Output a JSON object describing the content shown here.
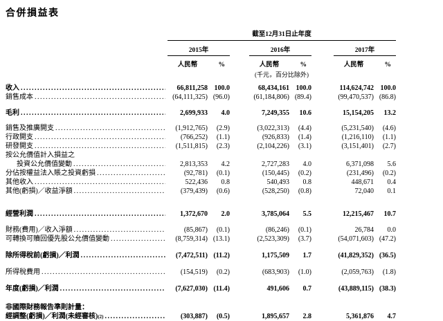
{
  "title": "合併損益表",
  "table": {
    "period_header": "截至12月31日止年度",
    "years": [
      "2015年",
      "2016年",
      "2017年"
    ],
    "currency_label": "人民幣",
    "percent_label": "%",
    "unit_note": "(千元，百分比除外)",
    "rows": [
      {
        "label": "收入",
        "bold": true,
        "values": [
          "66,811,258",
          "100.0",
          "68,434,161",
          "100.0",
          "114,624,742",
          "100.0"
        ]
      },
      {
        "label": "銷售成本",
        "values": [
          "(64,111,325)",
          "(96.0)",
          "(61,184,806)",
          "(89.4)",
          "(99,470,537)",
          "(86.8)"
        ]
      },
      {
        "label": "毛利",
        "bold": true,
        "gap": 10,
        "values": [
          "2,699,933",
          "4.0",
          "7,249,355",
          "10.6",
          "15,154,205",
          "13.2"
        ]
      },
      {
        "label": "銷售及推廣開支",
        "gap": 9,
        "values": [
          "(1,912,765)",
          "(2.9)",
          "(3,022,313)",
          "(4.4)",
          "(5,231,540)",
          "(4.6)"
        ]
      },
      {
        "label": "行政開支",
        "values": [
          "(766,252)",
          "(1.1)",
          "(926,833)",
          "(1.4)",
          "(1,216,110)",
          "(1.1)"
        ]
      },
      {
        "label": "研發開支",
        "values": [
          "(1,511,815)",
          "(2.3)",
          "(2,104,226)",
          "(3.1)",
          "(3,151,401)",
          "(2.7)"
        ]
      },
      {
        "pre_label": "按公允價值計入損益之",
        "label": "投資公允價值變動",
        "indent": true,
        "values": [
          "2,813,353",
          "4.2",
          "2,727,283",
          "4.0",
          "6,371,098",
          "5.6"
        ]
      },
      {
        "label": "分佔按權益法入賬之投資虧損",
        "values": [
          "(92,781)",
          "(0.1)",
          "(150,445)",
          "(0.2)",
          "(231,496)",
          "(0.2)"
        ]
      },
      {
        "label": "其他收入",
        "values": [
          "522,436",
          "0.8",
          "540,493",
          "0.8",
          "448,671",
          "0.4"
        ]
      },
      {
        "label": "其他(虧損)／收益淨額",
        "values": [
          "(379,439)",
          "(0.6)",
          "(528,250)",
          "(0.8)",
          "72,040",
          "0.1"
        ]
      },
      {
        "label": "經營利潤",
        "bold": true,
        "gap": 20,
        "values": [
          "1,372,670",
          "2.0",
          "3,785,064",
          "5.5",
          "12,215,467",
          "10.7"
        ]
      },
      {
        "label": "財務(費用)／收入淨額",
        "gap": 10,
        "values": [
          "(85,867)",
          "(0.1)",
          "(86,246)",
          "(0.1)",
          "26,784",
          "0.0"
        ]
      },
      {
        "label": "可轉換可贖回優先股公允價值變動",
        "values": [
          "(8,759,314)",
          "(13.1)",
          "(2,523,309)",
          "(3.7)",
          "(54,071,603)",
          "(47.2)"
        ]
      },
      {
        "label": "除所得稅前(虧損)／利潤",
        "bold": true,
        "gap": 11,
        "values": [
          "(7,472,511)",
          "(11.2)",
          "1,175,509",
          "1.7",
          "(41,829,352)",
          "(36.5)"
        ]
      },
      {
        "label": "所得稅費用",
        "gap": 11,
        "values": [
          "(154,519)",
          "(0.2)",
          "(683,903)",
          "(1.0)",
          "(2,059,763)",
          "(1.8)"
        ]
      },
      {
        "label": "年度(虧損)／利潤",
        "bold": true,
        "gap": 11,
        "values": [
          "(7,627,030)",
          "(11.4)",
          "491,606",
          "0.7",
          "(43,889,115)",
          "(38.3)"
        ]
      },
      {
        "pre_label": "非國際財務報告準則計量：",
        "label": "經調整(虧損)／利潤(未經審核)",
        "label_sup": "(2)",
        "bold": true,
        "gap": 14,
        "values": [
          "(303,887)",
          "(0.5)",
          "1,895,657",
          "2.8",
          "5,361,876",
          "4.7"
        ]
      }
    ]
  }
}
